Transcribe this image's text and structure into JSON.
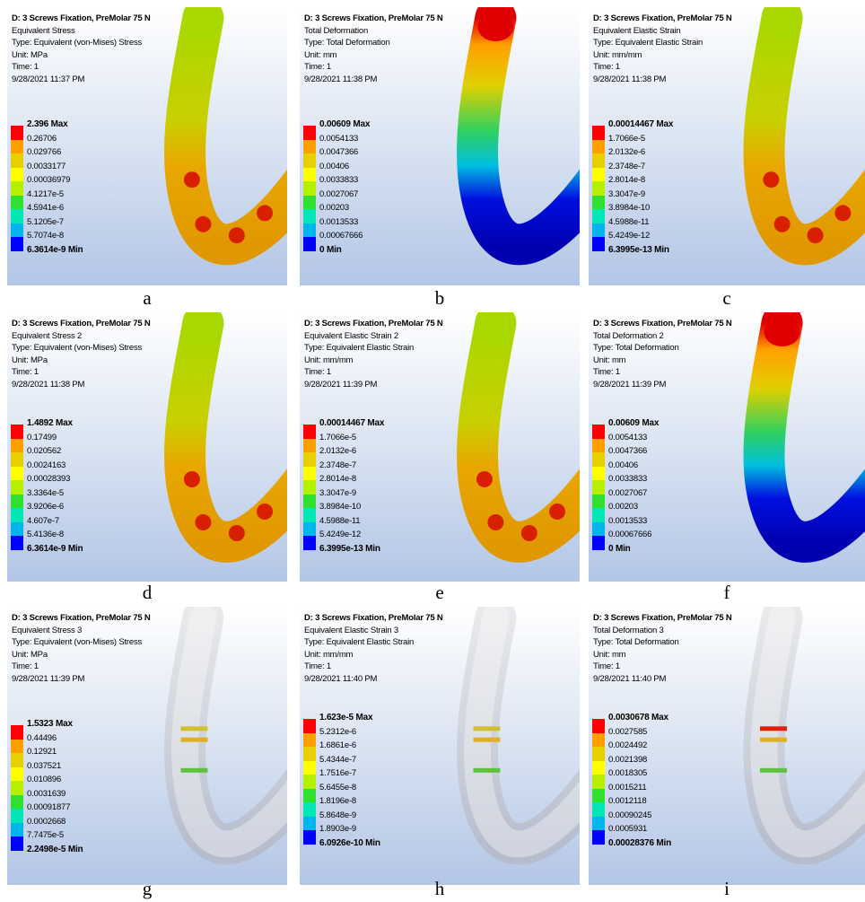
{
  "panels": [
    {
      "header": [
        "D: 3 Screws Fixation, PreMolar 75 N",
        "Equivalent Stress",
        "Type: Equivalent (von-Mises) Stress",
        "Unit: MPa",
        "Time: 1",
        "9/28/2021 11:37 PM"
      ],
      "legend": [
        "2.396 Max",
        "0.26706",
        "0.029766",
        "0.0033177",
        "0.00036979",
        "4.1217e-5",
        "4.5941e-6",
        "5.1205e-7",
        "5.7074e-8",
        "6.3614e-9 Min"
      ],
      "caption": "a"
    },
    {
      "header": [
        "D: 3 Screws Fixation, PreMolar 75 N",
        "Total Deformation",
        "Type: Total Deformation",
        "Unit: mm",
        "Time: 1",
        "9/28/2021 11:38 PM"
      ],
      "legend": [
        "0.00609 Max",
        "0.0054133",
        "0.0047366",
        "0.00406",
        "0.0033833",
        "0.0027067",
        "0.00203",
        "0.0013533",
        "0.00067666",
        "0 Min"
      ],
      "caption": "b"
    },
    {
      "header": [
        "D: 3 Screws Fixation, PreMolar 75 N",
        "Equivalent Elastic Strain",
        "Type: Equivalent Elastic Strain",
        "Unit: mm/mm",
        "Time: 1",
        "9/28/2021 11:38 PM"
      ],
      "legend": [
        "0.00014467 Max",
        "1.7066e-5",
        "2.0132e-6",
        "2.3748e-7",
        "2.8014e-8",
        "3.3047e-9",
        "3.8984e-10",
        "4.5988e-11",
        "5.4249e-12",
        "6.3995e-13 Min"
      ],
      "caption": "c"
    },
    {
      "header": [
        "D: 3 Screws Fixation, PreMolar 75 N",
        "Equivalent Stress 2",
        "Type: Equivalent (von-Mises) Stress",
        "Unit: MPa",
        "Time: 1",
        "9/28/2021 11:38 PM"
      ],
      "legend": [
        "1.4892 Max",
        "0.17499",
        "0.020562",
        "0.0024163",
        "0.00028393",
        "3.3364e-5",
        "3.9206e-6",
        "4.607e-7",
        "5.4136e-8",
        "6.3614e-9 Min"
      ],
      "caption": "d"
    },
    {
      "header": [
        "D: 3 Screws Fixation, PreMolar 75 N",
        "Equivalent Elastic Strain 2",
        "Type: Equivalent Elastic Strain",
        "Unit: mm/mm",
        "Time: 1",
        "9/28/2021 11:39 PM"
      ],
      "legend": [
        "0.00014467 Max",
        "1.7066e-5",
        "2.0132e-6",
        "2.3748e-7",
        "2.8014e-8",
        "3.3047e-9",
        "3.8984e-10",
        "4.5988e-11",
        "5.4249e-12",
        "6.3995e-13 Min"
      ],
      "caption": "e"
    },
    {
      "header": [
        "D: 3 Screws Fixation, PreMolar 75 N",
        "Total Deformation 2",
        "Type: Total Deformation",
        "Unit: mm",
        "Time: 1",
        "9/28/2021 11:39 PM"
      ],
      "legend": [
        "0.00609 Max",
        "0.0054133",
        "0.0047366",
        "0.00406",
        "0.0033833",
        "0.0027067",
        "0.00203",
        "0.0013533",
        "0.00067666",
        "0 Min"
      ],
      "caption": "f"
    },
    {
      "header": [
        "D: 3 Screws Fixation, PreMolar 75 N",
        "Equivalent Stress 3",
        "Type: Equivalent (von-Mises) Stress",
        "Unit: MPa",
        "Time: 1",
        "9/28/2021 11:39 PM"
      ],
      "legend": [
        "1.5323 Max",
        "0.44496",
        "0.12921",
        "0.037521",
        "0.010896",
        "0.0031639",
        "0.00091877",
        "0.0002668",
        "7.7475e-5",
        "2.2498e-5 Min"
      ],
      "caption": "g"
    },
    {
      "header": [
        "D: 3 Screws Fixation, PreMolar 75 N",
        "Equivalent Elastic Strain 3",
        "Type: Equivalent Elastic Strain",
        "Unit: mm/mm",
        "Time: 1",
        "9/28/2021 11:40 PM"
      ],
      "legend": [
        "1.623e-5 Max",
        "5.2312e-6",
        "1.6861e-6",
        "5.4344e-7",
        "1.7516e-7",
        "5.6455e-8",
        "1.8196e-8",
        "5.8648e-9",
        "1.8903e-9",
        "6.0926e-10 Min"
      ],
      "caption": "h"
    },
    {
      "header": [
        "D: 3 Screws Fixation, PreMolar 75 N",
        "Total Deformation 3",
        "Type: Total Deformation",
        "Unit: mm",
        "Time: 1",
        "9/28/2021 11:40 PM"
      ],
      "legend": [
        "0.0030678 Max",
        "0.0027585",
        "0.0024492",
        "0.0021398",
        "0.0018305",
        "0.0015211",
        "0.0012118",
        "0.00090245",
        "0.0005931",
        "0.00028376 Min"
      ],
      "caption": "i"
    }
  ]
}
